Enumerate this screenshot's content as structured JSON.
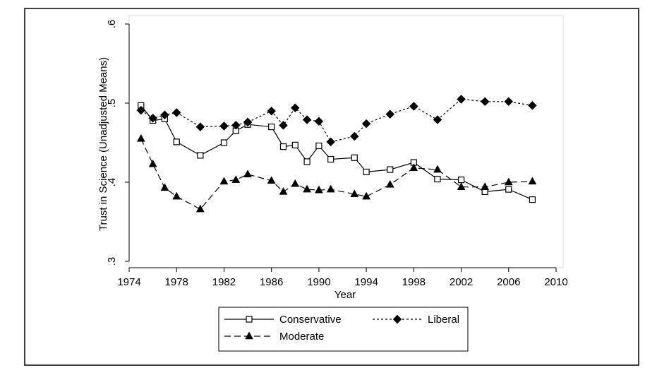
{
  "chart_data": {
    "type": "line",
    "title": "",
    "xlabel": "Year",
    "ylabel": "Trust in Science (Unadjusted Means)",
    "xlim": [
      1974,
      2010
    ],
    "ylim": [
      0.3,
      0.6
    ],
    "x_ticks": [
      "1974",
      "1978",
      "1982",
      "1986",
      "1990",
      "1994",
      "1998",
      "2002",
      "2006",
      "2010"
    ],
    "y_ticks": [
      ".3",
      ".4",
      ".5",
      ".6"
    ],
    "grid": false,
    "legend_position": "bottom",
    "series": [
      {
        "name": "Conservative",
        "marker": "hollow-square",
        "line": "solid",
        "x": [
          1975,
          1976,
          1977,
          1978,
          1980,
          1982,
          1983,
          1984,
          1986,
          1987,
          1988,
          1989,
          1990,
          1991,
          1993,
          1994,
          1996,
          1998,
          2000,
          2002,
          2004,
          2006,
          2008
        ],
        "values": [
          0.497,
          0.478,
          0.48,
          0.451,
          0.434,
          0.45,
          0.465,
          0.473,
          0.47,
          0.445,
          0.447,
          0.426,
          0.446,
          0.429,
          0.431,
          0.413,
          0.416,
          0.425,
          0.404,
          0.403,
          0.388,
          0.391,
          0.378
        ]
      },
      {
        "name": "Liberal",
        "marker": "filled-diamond",
        "line": "dotted",
        "x": [
          1975,
          1976,
          1977,
          1978,
          1980,
          1982,
          1983,
          1984,
          1986,
          1987,
          1988,
          1989,
          1990,
          1991,
          1993,
          1994,
          1996,
          1998,
          2000,
          2002,
          2004,
          2006,
          2008
        ],
        "values": [
          0.491,
          0.481,
          0.485,
          0.488,
          0.47,
          0.471,
          0.472,
          0.476,
          0.49,
          0.472,
          0.494,
          0.479,
          0.477,
          0.451,
          0.458,
          0.474,
          0.486,
          0.496,
          0.479,
          0.505,
          0.502,
          0.502,
          0.497
        ]
      },
      {
        "name": "Moderate",
        "marker": "filled-triangle",
        "line": "dashed",
        "x": [
          1975,
          1976,
          1977,
          1978,
          1980,
          1982,
          1983,
          1984,
          1986,
          1987,
          1988,
          1989,
          1990,
          1991,
          1993,
          1994,
          1996,
          1998,
          2000,
          2002,
          2004,
          2006,
          2008
        ],
        "values": [
          0.455,
          0.423,
          0.393,
          0.382,
          0.366,
          0.401,
          0.403,
          0.41,
          0.402,
          0.388,
          0.398,
          0.391,
          0.39,
          0.391,
          0.385,
          0.382,
          0.397,
          0.418,
          0.416,
          0.394,
          0.394,
          0.4,
          0.401
        ]
      }
    ]
  }
}
